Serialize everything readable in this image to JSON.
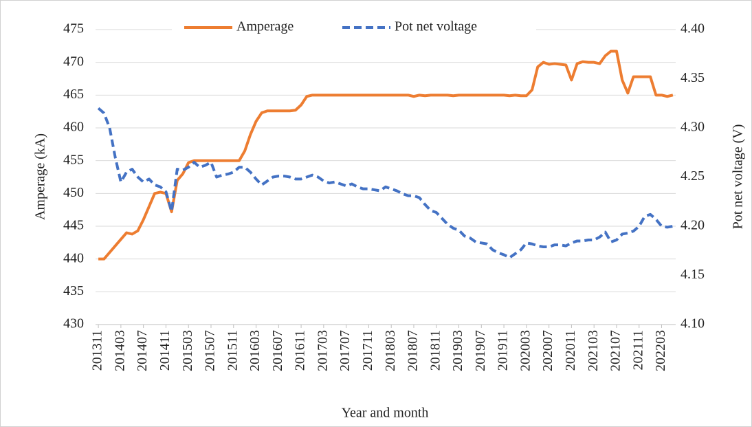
{
  "chart_data": {
    "type": "line",
    "xlabel": "Year and month",
    "ylabel": "Amperage (kA)",
    "y2label": "Pot net voltage (V)",
    "categories": [
      "201311",
      null,
      null,
      null,
      "201403",
      null,
      null,
      null,
      "201407",
      null,
      null,
      null,
      "201411",
      null,
      null,
      null,
      "201503",
      null,
      null,
      null,
      "201507",
      null,
      null,
      null,
      "201511",
      null,
      null,
      null,
      "201603",
      null,
      null,
      null,
      "201607",
      null,
      null,
      null,
      "201611",
      null,
      null,
      null,
      "201703",
      null,
      null,
      null,
      "201707",
      null,
      null,
      null,
      "201711",
      null,
      null,
      null,
      "201803",
      null,
      null,
      null,
      "201807",
      null,
      null,
      null,
      "201811",
      null,
      null,
      null,
      "201903",
      null,
      null,
      null,
      "201907",
      null,
      null,
      null,
      "201911",
      null,
      null,
      null,
      "202003",
      null,
      null,
      null,
      "202007",
      null,
      null,
      null,
      "202011",
      null,
      null,
      null,
      "202103",
      null,
      null,
      null,
      "202107",
      null,
      null,
      null,
      "202111",
      null,
      null,
      null,
      "202203",
      null,
      null
    ],
    "series": [
      {
        "name": "Amperage",
        "color": "#ed7d31",
        "dash": false,
        "values": [
          440,
          440,
          441,
          442,
          443,
          444,
          443.8,
          444.3,
          446,
          448,
          450,
          450.2,
          450,
          447.2,
          452,
          453,
          454.7,
          455,
          455,
          455,
          455,
          455,
          455,
          455,
          455,
          455,
          456.5,
          459,
          461,
          462.3,
          462.6,
          462.6,
          462.6,
          462.6,
          462.6,
          462.7,
          463.5,
          464.8,
          465,
          465,
          465,
          465,
          465,
          465,
          465,
          465,
          465,
          465,
          465,
          465,
          465,
          465,
          465,
          465,
          465,
          465,
          464.8,
          465,
          464.9,
          465,
          465,
          465,
          465,
          464.9,
          465,
          465,
          465,
          465,
          465,
          465,
          465,
          465,
          465,
          464.9,
          465,
          464.9,
          464.9,
          465.8,
          469.3,
          470,
          469.7,
          469.8,
          469.7,
          469.6,
          467.3,
          469.8,
          470.1,
          470,
          470,
          469.8,
          471,
          471.7,
          471.7,
          467.3,
          465.3,
          467.8,
          467.8,
          467.8,
          467.8,
          465,
          465,
          464.8,
          465
        ]
      },
      {
        "name": "Pot net voltage",
        "color": "#4472c4",
        "dash": true,
        "axis": "y2",
        "values": [
          4.32,
          4.315,
          4.3,
          4.27,
          4.245,
          4.255,
          4.258,
          4.25,
          4.245,
          4.248,
          4.242,
          4.24,
          4.235,
          4.215,
          4.258,
          4.257,
          4.26,
          4.265,
          4.26,
          4.262,
          4.265,
          4.25,
          4.252,
          4.253,
          4.255,
          4.26,
          4.26,
          4.255,
          4.248,
          4.242,
          4.246,
          4.25,
          4.251,
          4.251,
          4.25,
          4.248,
          4.248,
          4.25,
          4.252,
          4.25,
          4.246,
          4.244,
          4.245,
          4.243,
          4.241,
          4.243,
          4.24,
          4.238,
          4.238,
          4.237,
          4.236,
          4.24,
          4.238,
          4.236,
          4.233,
          4.231,
          4.231,
          4.229,
          4.222,
          4.216,
          4.214,
          4.208,
          4.202,
          4.198,
          4.196,
          4.19,
          4.188,
          4.184,
          4.183,
          4.182,
          4.176,
          4.173,
          4.171,
          4.168,
          4.172,
          4.176,
          4.183,
          4.182,
          4.18,
          4.179,
          4.179,
          4.181,
          4.181,
          4.18,
          4.183,
          4.185,
          4.185,
          4.186,
          4.186,
          4.189,
          4.194,
          4.184,
          4.186,
          4.192,
          4.193,
          4.195,
          4.2,
          4.21,
          4.212,
          4.207,
          4.2,
          4.199,
          4.2
        ]
      }
    ],
    "ylim": [
      430,
      475
    ],
    "yticks": [
      430,
      435,
      440,
      445,
      450,
      455,
      460,
      465,
      470,
      475
    ],
    "y2lim": [
      4.1,
      4.4
    ],
    "y2ticks": [
      {
        "value": 4.1,
        "label": "4.10"
      },
      4.15,
      {
        "value": 4.2,
        "label": "4.20"
      },
      4.25,
      {
        "value": 4.3,
        "label": "4.30"
      },
      4.35,
      {
        "value": 4.4,
        "label": "4.40"
      }
    ],
    "grid": true,
    "legend": "top"
  }
}
